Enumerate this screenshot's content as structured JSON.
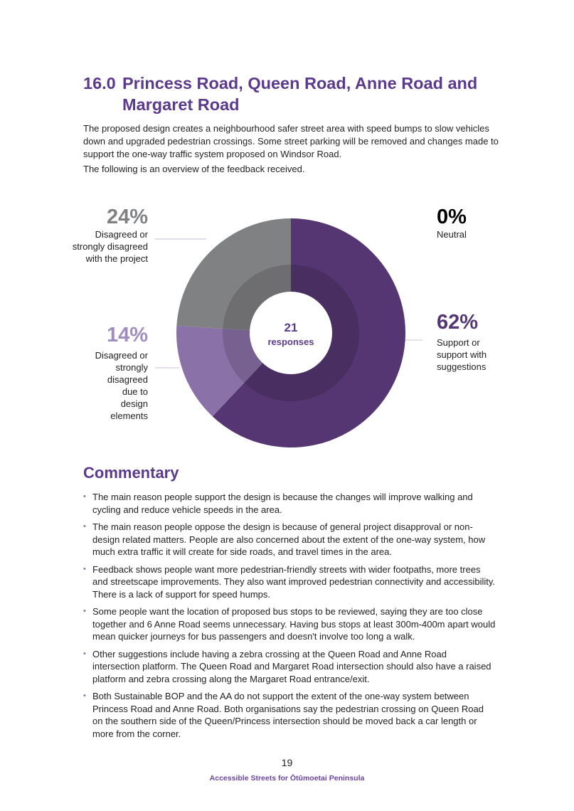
{
  "heading": {
    "number": "16.0",
    "line1": "Princess Road, Queen Road, Anne Road and",
    "line2": "Margaret Road"
  },
  "intro": "The proposed design creates a neighbourhood safer street area with speed bumps to slow vehicles down and upgraded pedestrian crossings. Some street parking will be removed and changes made to support the one-way traffic system proposed on Windsor Road.",
  "overview": "The following is an overview of the feedback received.",
  "chart_data": {
    "type": "pie",
    "variant": "donut",
    "center_value": "21",
    "center_label": "responses",
    "slices": [
      {
        "label": "Support or support with suggestions",
        "pct_label": "62%",
        "value": 62,
        "color": "#553673"
      },
      {
        "label": "Disagreed or strongly disagreed due to design elements",
        "pct_label": "14%",
        "value": 14,
        "color": "#8a72a8"
      },
      {
        "label": "Disagreed or strongly disagreed with the project",
        "pct_label": "24%",
        "value": 24,
        "color": "#808183"
      },
      {
        "label": "Neutral",
        "pct_label": "0%",
        "value": 0,
        "color": "#000000"
      }
    ]
  },
  "commentary": {
    "title": "Commentary",
    "items": [
      "The main reason people support the design is because the changes will improve walking and cycling and reduce vehicle speeds in the area.",
      "The main reason people oppose the design is because of general project disapproval or non-design related matters. People are also concerned about the extent of the one-way system, how much extra traffic it will create for side roads, and travel times in the area.",
      "Feedback shows people want more pedestrian-friendly streets with wider footpaths, more trees and streetscape improvements. They also want improved pedestrian connectivity and accessibility. There is a lack of support for speed humps.",
      "Some people want the location of proposed bus stops to be reviewed, saying they are too close together and 6 Anne Road seems unnecessary. Having bus stops at least 300m-400m apart would mean quicker journeys for bus passengers and doesn't involve too long a walk.",
      "Other suggestions include having a zebra crossing at the Queen Road and Anne Road intersection platform. The Queen Road and Margaret Road intersection should also have a raised platform and zebra crossing along the Margaret Road entrance/exit.",
      "Both Sustainable BOP and the AA do not support the extent of the one-way system between Princess Road and Anne Road. Both organisations say the pedestrian crossing on Queen Road on the southern side of the Queen/Princess intersection should be moved back a car length or more from the corner."
    ]
  },
  "footer": {
    "page": "19",
    "title": "Accessible Streets for Ōtūmoetai Peninsula"
  }
}
